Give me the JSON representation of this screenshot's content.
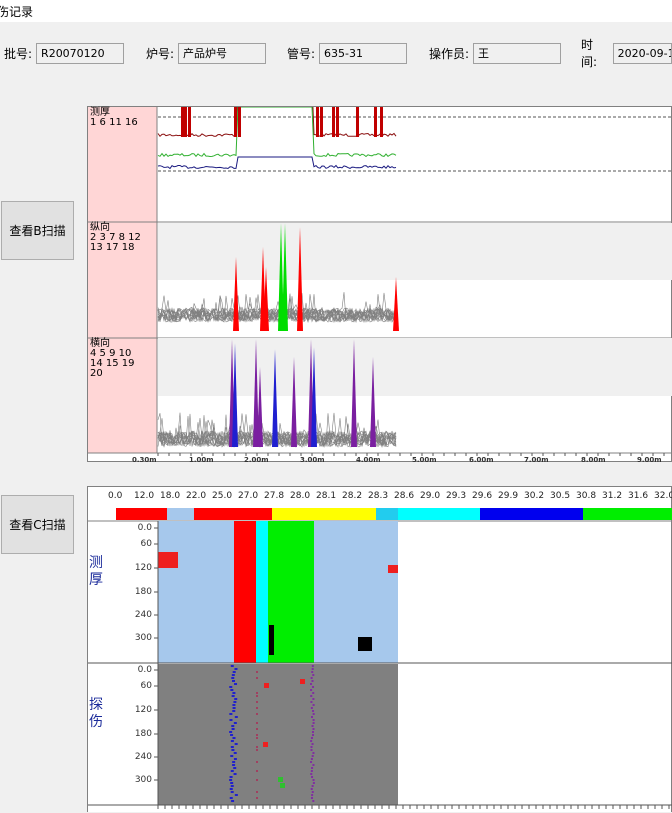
{
  "window": {
    "title": "伤记录"
  },
  "header": {
    "batch": {
      "label": "批号:",
      "value": "R20070120"
    },
    "furnace": {
      "label": "炉号:",
      "value": "产品炉号"
    },
    "pipe": {
      "label": "管号:",
      "value": "635-31"
    },
    "operator": {
      "label": "操作员:",
      "value": "王"
    },
    "time": {
      "label": "时间:",
      "value": "2020-09-1"
    }
  },
  "buttons": {
    "bscan": "查看B扫描",
    "cscan": "查看C扫描"
  },
  "bscan": {
    "channels": [
      {
        "name": "测厚",
        "ids": "1 6 11 16"
      },
      {
        "name": "纵向",
        "ids": "2 3 7 8 12\n13 17 18"
      },
      {
        "name": "横向",
        "ids": "4 5 9 10\n14 15 19\n20"
      }
    ],
    "x_axis": [
      "0.30m",
      "1.00m",
      "2.00m",
      "3.00m",
      "4.00m",
      "5.00m",
      "6.00m",
      "7.00m",
      "8.00m",
      "9.00m"
    ],
    "colors": {
      "panel_label_bg": "#ffd6d6",
      "noise": "#808080",
      "red": "#ff0000",
      "green": "#00dd00",
      "purple": "#7a1fa0",
      "blue": "#2020d0"
    }
  },
  "cscan": {
    "legend_values": [
      "0.0",
      "12.0",
      "18.0",
      "22.0",
      "25.0",
      "27.0",
      "27.8",
      "28.0",
      "28.1",
      "28.2",
      "28.3",
      "28.6",
      "29.0",
      "29.3",
      "29.6",
      "29.9",
      "30.2",
      "30.5",
      "30.8",
      "31.2",
      "31.6",
      "32.0"
    ],
    "legend_colors": [
      "#ff0000",
      "#a6c8ec",
      "#ff0000",
      "#ffff00",
      "#22ccee",
      "#00ffff",
      "#0000ee",
      "#00ee00"
    ],
    "sections": [
      {
        "name": "测\n厚",
        "y_ticks": [
          "0.0",
          "60",
          "120",
          "180",
          "240",
          "300"
        ]
      },
      {
        "name": "探\n伤",
        "y_ticks": [
          "0.0",
          "60",
          "120",
          "180",
          "240",
          "300"
        ]
      }
    ],
    "colors": {
      "thickness_bg": "#a6c8ec",
      "flaw_bg": "#808080"
    }
  }
}
